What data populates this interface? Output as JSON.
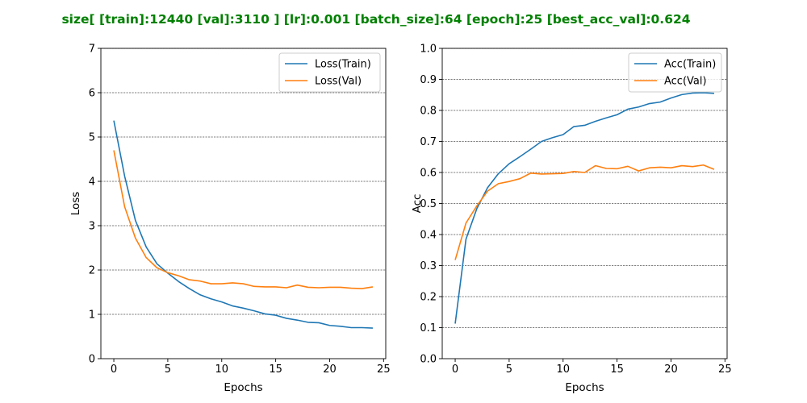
{
  "suptitle": "size[ [train]:12440  [val]:3110 ]  [lr]:0.001  [batch_size]:64  [epoch]:25  [best_acc_val]:0.624",
  "colors": {
    "train": "#1f77b4",
    "val": "#ff7f0e",
    "title": "#008000"
  },
  "chart_data": [
    {
      "type": "line",
      "xlabel": "Epochs",
      "ylabel": "Loss",
      "xlim": [
        -1.2,
        25.2
      ],
      "ylim": [
        0,
        7
      ],
      "xticks": [
        0,
        5,
        10,
        15,
        20,
        25
      ],
      "yticks": [
        0,
        1,
        2,
        3,
        4,
        5,
        6,
        7
      ],
      "ytick_labels": [
        "0",
        "1",
        "2",
        "3",
        "4",
        "5",
        "6",
        "7"
      ],
      "grid": "horizontal dashed",
      "legend_position": "top-right",
      "x": [
        0,
        1,
        2,
        3,
        4,
        5,
        6,
        7,
        8,
        9,
        10,
        11,
        12,
        13,
        14,
        15,
        16,
        17,
        18,
        19,
        20,
        21,
        22,
        23,
        24
      ],
      "series": [
        {
          "name": "Loss(Train)",
          "color": "#1f77b4",
          "values": [
            5.37,
            4.12,
            3.12,
            2.52,
            2.14,
            1.93,
            1.74,
            1.58,
            1.44,
            1.35,
            1.28,
            1.19,
            1.14,
            1.08,
            1.01,
            0.98,
            0.91,
            0.87,
            0.82,
            0.81,
            0.75,
            0.73,
            0.7,
            0.7,
            0.69
          ]
        },
        {
          "name": "Loss(Val)",
          "color": "#ff7f0e",
          "values": [
            4.7,
            3.43,
            2.72,
            2.28,
            2.05,
            1.94,
            1.87,
            1.78,
            1.75,
            1.69,
            1.69,
            1.71,
            1.69,
            1.63,
            1.62,
            1.62,
            1.6,
            1.66,
            1.61,
            1.6,
            1.61,
            1.61,
            1.59,
            1.58,
            1.62
          ]
        }
      ]
    },
    {
      "type": "line",
      "xlabel": "Epochs",
      "ylabel": "Acc",
      "xlim": [
        -1.2,
        25.2
      ],
      "ylim": [
        0,
        1
      ],
      "xticks": [
        0,
        5,
        10,
        15,
        20,
        25
      ],
      "yticks": [
        0,
        0.1,
        0.2,
        0.3,
        0.4,
        0.5,
        0.6,
        0.7,
        0.8,
        0.9,
        1.0
      ],
      "ytick_labels": [
        "0.0",
        "0.1",
        "0.2",
        "0.3",
        "0.4",
        "0.5",
        "0.6",
        "0.7",
        "0.8",
        "0.9",
        "1.0"
      ],
      "grid": "horizontal dashed",
      "legend_position": "top-right",
      "x": [
        0,
        1,
        2,
        3,
        4,
        5,
        6,
        7,
        8,
        9,
        10,
        11,
        12,
        13,
        14,
        15,
        16,
        17,
        18,
        19,
        20,
        21,
        22,
        23,
        24
      ],
      "series": [
        {
          "name": "Acc(Train)",
          "color": "#1f77b4",
          "values": [
            0.113,
            0.385,
            0.483,
            0.551,
            0.596,
            0.628,
            0.651,
            0.675,
            0.7,
            0.712,
            0.722,
            0.748,
            0.752,
            0.765,
            0.776,
            0.786,
            0.804,
            0.811,
            0.822,
            0.827,
            0.84,
            0.851,
            0.856,
            0.857,
            0.855
          ]
        },
        {
          "name": "Acc(Val)",
          "color": "#ff7f0e",
          "values": [
            0.318,
            0.437,
            0.492,
            0.54,
            0.564,
            0.571,
            0.58,
            0.598,
            0.595,
            0.596,
            0.597,
            0.603,
            0.6,
            0.622,
            0.613,
            0.612,
            0.62,
            0.605,
            0.615,
            0.617,
            0.615,
            0.622,
            0.619,
            0.624,
            0.61
          ]
        }
      ]
    }
  ]
}
